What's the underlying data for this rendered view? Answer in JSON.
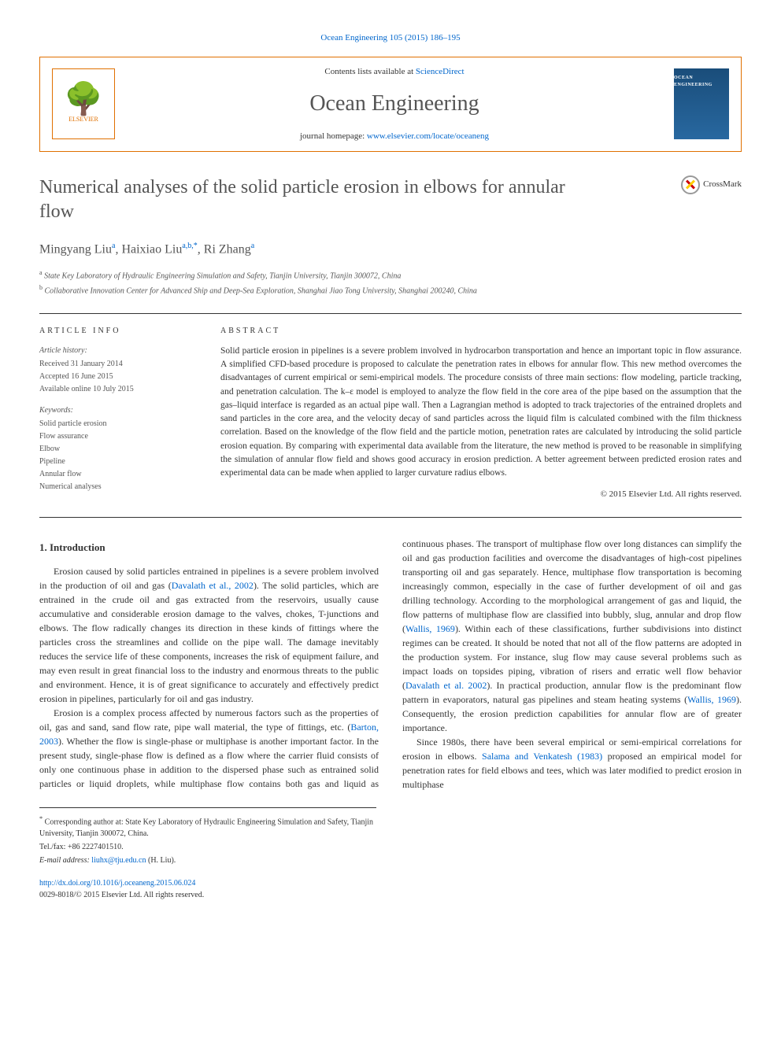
{
  "journal_ref": {
    "journal": "Ocean Engineering",
    "volume_pages": "105 (2015) 186–195",
    "journal_link": "Ocean Engineering"
  },
  "header": {
    "contents_prefix": "Contents lists available at ",
    "contents_link": "ScienceDirect",
    "journal_title": "Ocean Engineering",
    "homepage_prefix": "journal homepage: ",
    "homepage_link": "www.elsevier.com/locate/oceaneng",
    "publisher_name": "ELSEVIER",
    "cover_title": "OCEAN ENGINEERING"
  },
  "article": {
    "title": "Numerical analyses of the solid particle erosion in elbows for annular flow",
    "crossmark_label": "CrossMark"
  },
  "authors": {
    "line": "Mingyang Liu",
    "a1_sup": "a",
    "a2_name": ", Haixiao Liu",
    "a2_sup": "a,b,",
    "a2_corr": "*",
    "a3_name": ", Ri Zhang",
    "a3_sup": "a"
  },
  "affiliations": {
    "a_sup": "a",
    "a_text": " State Key Laboratory of Hydraulic Engineering Simulation and Safety, Tianjin University, Tianjin 300072, China",
    "b_sup": "b",
    "b_text": " Collaborative Innovation Center for Advanced Ship and Deep-Sea Exploration, Shanghai Jiao Tong University, Shanghai 200240, China"
  },
  "article_info": {
    "heading": "ARTICLE INFO",
    "history_label": "Article history:",
    "received": "Received 31 January 2014",
    "accepted": "Accepted 16 June 2015",
    "available": "Available online 10 July 2015",
    "keywords_label": "Keywords:",
    "keywords": [
      "Solid particle erosion",
      "Flow assurance",
      "Elbow",
      "Pipeline",
      "Annular flow",
      "Numerical analyses"
    ]
  },
  "abstract": {
    "heading": "ABSTRACT",
    "text": "Solid particle erosion in pipelines is a severe problem involved in hydrocarbon transportation and hence an important topic in flow assurance. A simplified CFD-based procedure is proposed to calculate the penetration rates in elbows for annular flow. This new method overcomes the disadvantages of current empirical or semi-empirical models. The procedure consists of three main sections: flow modeling, particle tracking, and penetration calculation. The k–ε model is employed to analyze the flow field in the core area of the pipe based on the assumption that the gas–liquid interface is regarded as an actual pipe wall. Then a Lagrangian method is adopted to track trajectories of the entrained droplets and sand particles in the core area, and the velocity decay of sand particles across the liquid film is calculated combined with the film thickness correlation. Based on the knowledge of the flow field and the particle motion, penetration rates are calculated by introducing the solid particle erosion equation. By comparing with experimental data available from the literature, the new method is proved to be reasonable in simplifying the simulation of annular flow field and shows good accuracy in erosion prediction. A better agreement between predicted erosion rates and experimental data can be made when applied to larger curvature radius elbows.",
    "copyright": "© 2015 Elsevier Ltd. All rights reserved."
  },
  "body": {
    "section_heading": "1.  Introduction",
    "p1a": "Erosion caused by solid particles entrained in pipelines is a severe problem involved in the production of oil and gas (",
    "p1_ref1": "Davalath et al., 2002",
    "p1b": "). The solid particles, which are entrained in the crude oil and gas extracted from the reservoirs, usually cause accumulative and considerable erosion damage to the valves, chokes, T-junctions and elbows. The flow radically changes its direction in these kinds of fittings where the particles cross the streamlines and collide on the pipe wall. The damage inevitably reduces the service life of these components, increases the risk of equipment failure, and may even result in great financial loss to the industry and enormous threats to the public and environment. Hence, it is of great significance to accurately and effectively predict erosion in pipelines, particularly for oil and gas industry.",
    "p2a": "Erosion is a complex process affected by numerous factors such as the properties of oil, gas and sand, sand flow rate, pipe wall material, the type of fittings, etc. (",
    "p2_ref1": "Barton, 2003",
    "p2b": "). Whether the flow is single-phase or multiphase is another important factor. In the present study, single-phase flow is defined as a flow where the carrier fluid consists of only one continuous phase in addition to the dispersed phase such as entrained solid particles or liquid droplets, while multiphase flow contains both gas and liquid as continuous phases. The transport of multiphase flow over long distances can simplify the oil and gas production facilities and overcome the disadvantages of high-cost pipelines transporting oil and gas separately. Hence, multiphase flow transportation is becoming increasingly common, especially in the case of further development of oil and gas drilling technology. According to the morphological arrangement of gas and liquid, the flow patterns of multiphase flow are classified into bubbly, slug, annular and drop flow (",
    "p2_ref2": "Wallis, 1969",
    "p2c": "). Within each of these classifications, further subdivisions into distinct regimes can be created. It should be noted that not all of the flow patterns are adopted in the production system. For instance, slug flow may cause several problems such as impact loads on topsides piping, vibration of risers and erratic well flow behavior (",
    "p2_ref3": "Davalath et al. 2002",
    "p2d": "). In practical production, annular flow is the predominant flow pattern in evaporators, natural gas pipelines and steam heating systems (",
    "p2_ref4": "Wallis, 1969",
    "p2e": "). Consequently, the erosion prediction capabilities for annular flow are of greater importance.",
    "p3a": "Since 1980s, there have been several empirical or semi-empirical correlations for erosion in elbows. ",
    "p3_ref1": "Salama and Venkatesh (1983)",
    "p3b": " proposed an empirical model for penetration rates for field elbows and tees, which was later modified to predict erosion in multiphase"
  },
  "footnotes": {
    "corr_marker": "*",
    "corr_text": " Corresponding author at: State Key Laboratory of Hydraulic Engineering Simulation and Safety, Tianjin University, Tianjin 300072, China.",
    "tel_line": "Tel./fax: +86 2227401510.",
    "email_label": "E-mail address: ",
    "email": "liuhx@tju.edu.cn",
    "email_suffix": " (H. Liu)."
  },
  "footer": {
    "doi": "http://dx.doi.org/10.1016/j.oceaneng.2015.06.024",
    "issn_line": "0029-8018/© 2015 Elsevier Ltd. All rights reserved."
  },
  "colors": {
    "link": "#0066cc",
    "accent": "#e07000",
    "text": "#333333",
    "title_gray": "#555555"
  }
}
